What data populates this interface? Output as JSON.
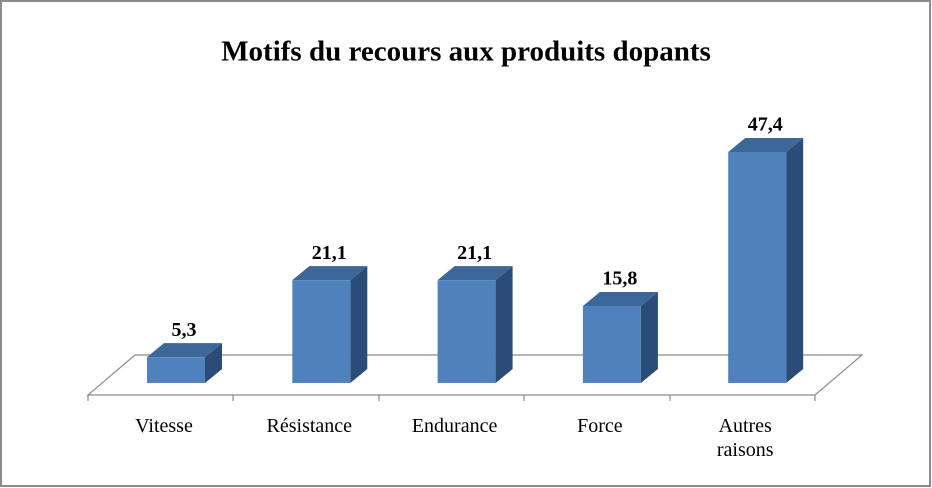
{
  "chart_data": {
    "type": "bar3d",
    "title": "Motifs du recours aux produits dopants",
    "categories": [
      "Vitesse",
      "Résistance",
      "Endurance",
      "Force",
      "Autres raisons"
    ],
    "values": [
      5.3,
      21.1,
      21.1,
      15.8,
      47.4
    ],
    "value_labels": [
      "5,3",
      "21,1",
      "21,1",
      "15,8",
      "47,4"
    ],
    "color": "#4f81bd"
  }
}
